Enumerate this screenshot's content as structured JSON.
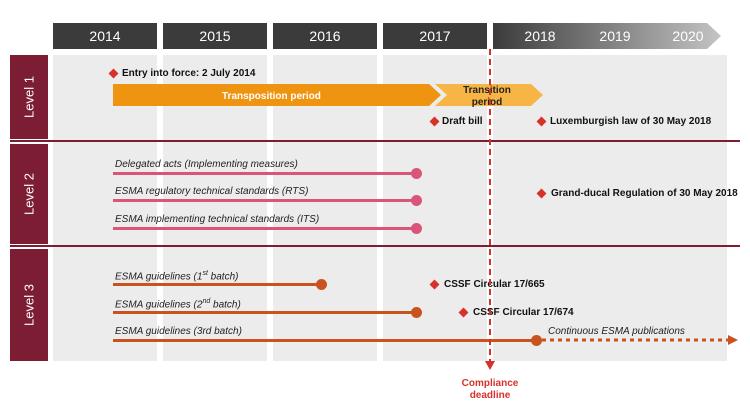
{
  "years": [
    "2014",
    "2015",
    "2016",
    "2017",
    "2018",
    "2019",
    "2020"
  ],
  "levels": [
    "Level 1",
    "Level 2",
    "Level 3"
  ],
  "level1": {
    "entry": "Entry into force: 2 July 2014",
    "transposition": "Transposition period",
    "transition": "Transition period",
    "draft_bill": "Draft bill",
    "lux_law": "Luxemburgish law of 30 May 2018"
  },
  "level2": {
    "delegated": "Delegated acts (Implementing measures)",
    "rts": "ESMA regulatory technical standards (RTS)",
    "its": "ESMA implementing technical standards (ITS)",
    "grand_ducal": "Grand-ducal Regulation of 30 May 2018"
  },
  "level3": {
    "g1": "ESMA guidelines (1",
    "g1_sup": "st",
    "g1_end": " batch)",
    "g2": "ESMA guidelines (2",
    "g2_sup": "nd",
    "g2_end": " batch)",
    "g3": "ESMA guidelines (3rd batch)",
    "cssf1": "CSSF Circular 17/665",
    "cssf2": "CSSF Circular 17/674",
    "continuous": "Continuous ESMA publications"
  },
  "compliance": [
    "Compliance",
    "deadline"
  ],
  "colors": {
    "level_bg": "#7c1d33",
    "orange": "#ef9410",
    "orange_light": "#f6b545",
    "pink": "#d9567a",
    "rust": "#c9531e",
    "red": "#d6322b"
  }
}
